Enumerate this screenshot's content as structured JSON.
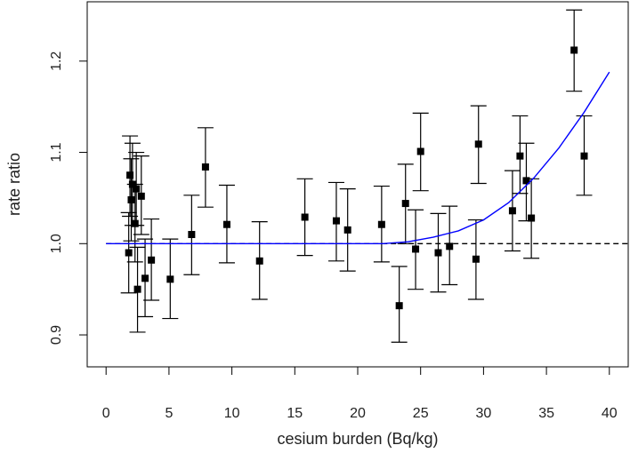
{
  "chart_data": {
    "type": "scatter",
    "xlabel": "cesium burden (Bq/kg)",
    "ylabel": "rate ratio",
    "xlim": [
      -1.5,
      41.5
    ],
    "ylim": [
      0.865,
      1.265
    ],
    "xticks": [
      "0",
      "5",
      "10",
      "15",
      "20",
      "25",
      "30",
      "35",
      "40"
    ],
    "yticks": [
      "0.9",
      "1.0",
      "1.1",
      "1.2"
    ],
    "reference_line": {
      "y": 1.0,
      "style": "dashed",
      "color": "#000000"
    },
    "points": [
      {
        "x": 1.8,
        "y": 0.99,
        "lo": 0.946,
        "hi": 1.034
      },
      {
        "x": 1.9,
        "y": 1.075,
        "lo": 1.03,
        "hi": 1.118
      },
      {
        "x": 2.0,
        "y": 1.048,
        "lo": 1.003,
        "hi": 1.093
      },
      {
        "x": 2.1,
        "y": 1.065,
        "lo": 1.02,
        "hi": 1.11
      },
      {
        "x": 2.3,
        "y": 1.022,
        "lo": 0.98,
        "hi": 1.065
      },
      {
        "x": 2.4,
        "y": 1.06,
        "lo": 1.02,
        "hi": 1.1
      },
      {
        "x": 2.5,
        "y": 0.95,
        "lo": 0.903,
        "hi": 0.996
      },
      {
        "x": 2.8,
        "y": 1.052,
        "lo": 1.01,
        "hi": 1.096
      },
      {
        "x": 3.1,
        "y": 0.962,
        "lo": 0.92,
        "hi": 1.005
      },
      {
        "x": 3.6,
        "y": 0.982,
        "lo": 0.938,
        "hi": 1.027
      },
      {
        "x": 5.1,
        "y": 0.961,
        "lo": 0.918,
        "hi": 1.005
      },
      {
        "x": 6.8,
        "y": 1.01,
        "lo": 0.966,
        "hi": 1.053
      },
      {
        "x": 7.9,
        "y": 1.084,
        "lo": 1.04,
        "hi": 1.127
      },
      {
        "x": 9.6,
        "y": 1.021,
        "lo": 0.979,
        "hi": 1.064
      },
      {
        "x": 12.2,
        "y": 0.981,
        "lo": 0.939,
        "hi": 1.024
      },
      {
        "x": 15.8,
        "y": 1.029,
        "lo": 0.987,
        "hi": 1.071
      },
      {
        "x": 18.3,
        "y": 1.025,
        "lo": 0.981,
        "hi": 1.067
      },
      {
        "x": 19.2,
        "y": 1.015,
        "lo": 0.97,
        "hi": 1.06
      },
      {
        "x": 21.9,
        "y": 1.021,
        "lo": 0.98,
        "hi": 1.063
      },
      {
        "x": 23.3,
        "y": 0.932,
        "lo": 0.892,
        "hi": 0.975
      },
      {
        "x": 23.8,
        "y": 1.044,
        "lo": 1.0,
        "hi": 1.087
      },
      {
        "x": 24.6,
        "y": 0.994,
        "lo": 0.95,
        "hi": 1.037
      },
      {
        "x": 25.0,
        "y": 1.101,
        "lo": 1.058,
        "hi": 1.143
      },
      {
        "x": 26.4,
        "y": 0.99,
        "lo": 0.947,
        "hi": 1.033
      },
      {
        "x": 27.3,
        "y": 0.997,
        "lo": 0.955,
        "hi": 1.041
      },
      {
        "x": 29.4,
        "y": 0.983,
        "lo": 0.939,
        "hi": 1.026
      },
      {
        "x": 29.6,
        "y": 1.109,
        "lo": 1.066,
        "hi": 1.151
      },
      {
        "x": 32.3,
        "y": 1.036,
        "lo": 0.992,
        "hi": 1.08
      },
      {
        "x": 32.9,
        "y": 1.096,
        "lo": 1.055,
        "hi": 1.14
      },
      {
        "x": 33.4,
        "y": 1.069,
        "lo": 1.025,
        "hi": 1.11
      },
      {
        "x": 33.8,
        "y": 1.028,
        "lo": 0.984,
        "hi": 1.071
      },
      {
        "x": 37.2,
        "y": 1.212,
        "lo": 1.167,
        "hi": 1.256
      },
      {
        "x": 38.0,
        "y": 1.096,
        "lo": 1.053,
        "hi": 1.14
      }
    ],
    "fit_curve": {
      "color": "#0000ff",
      "x": [
        0,
        5,
        10,
        15,
        20,
        22,
        24,
        26,
        28,
        30,
        32,
        34,
        36,
        38,
        40
      ],
      "y": [
        1.0,
        1.0,
        1.0,
        1.0,
        1.0,
        1.0,
        1.002,
        1.007,
        1.014,
        1.026,
        1.045,
        1.072,
        1.105,
        1.144,
        1.188
      ]
    }
  }
}
